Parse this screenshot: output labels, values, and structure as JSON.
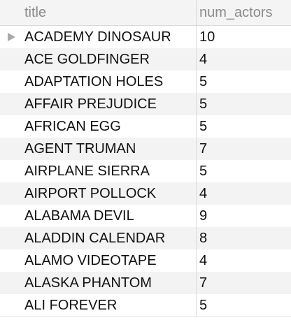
{
  "columns": {
    "title": "title",
    "num_actors": "num_actors"
  },
  "rows": [
    {
      "title": "ACADEMY DINOSAUR",
      "num_actors": "10"
    },
    {
      "title": "ACE GOLDFINGER",
      "num_actors": "4"
    },
    {
      "title": "ADAPTATION HOLES",
      "num_actors": "5"
    },
    {
      "title": "AFFAIR PREJUDICE",
      "num_actors": "5"
    },
    {
      "title": "AFRICAN EGG",
      "num_actors": "5"
    },
    {
      "title": "AGENT TRUMAN",
      "num_actors": "7"
    },
    {
      "title": "AIRPLANE SIERRA",
      "num_actors": "5"
    },
    {
      "title": "AIRPORT POLLOCK",
      "num_actors": "4"
    },
    {
      "title": "ALABAMA DEVIL",
      "num_actors": "9"
    },
    {
      "title": "ALADDIN CALENDAR",
      "num_actors": "8"
    },
    {
      "title": "ALAMO VIDEOTAPE",
      "num_actors": "4"
    },
    {
      "title": "ALASKA PHANTOM",
      "num_actors": "7"
    },
    {
      "title": "ALI FOREVER",
      "num_actors": "5"
    }
  ],
  "icons": {
    "current_row": "triangle-right-icon"
  }
}
